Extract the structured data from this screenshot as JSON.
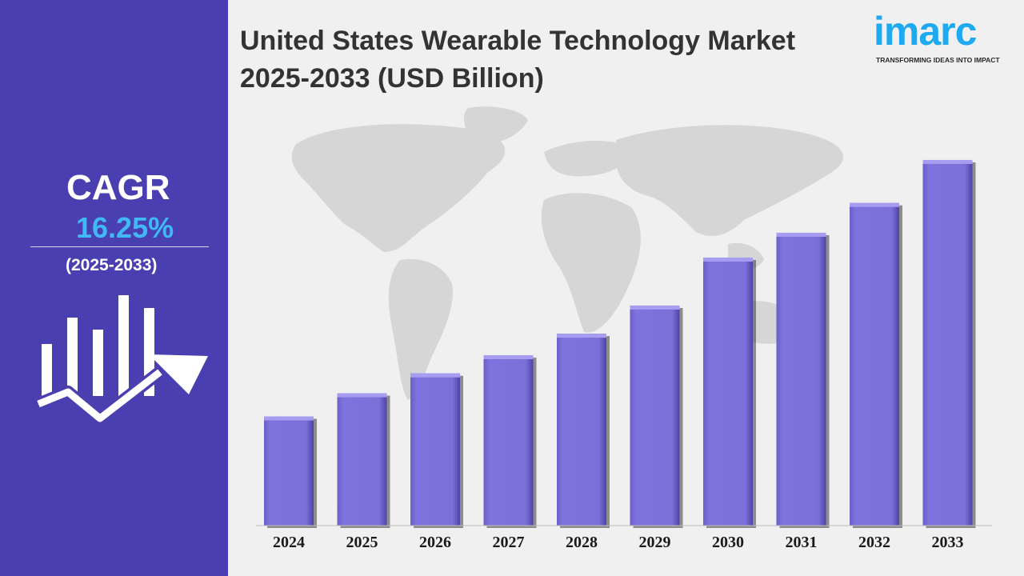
{
  "sidebar": {
    "cagr_label": "CAGR",
    "cagr_value": "16.25%",
    "cagr_period": "(2025-2033)",
    "icon": "bar-chart-growth-arrow-icon"
  },
  "header": {
    "title_line1": "United States Wearable Technology Market",
    "title_line2": "2025-2033 (USD Billion)"
  },
  "logo": {
    "wordmark": "imarc",
    "tagline": "TRANSFORMING IDEAS INTO IMPACT"
  },
  "colors": {
    "sidebar_bg": "#4a3fb0",
    "bar_fill": "#7b6fd8",
    "cagr_value": "#3fb8f4",
    "logo_blue": "#1eaaf1",
    "background": "#f0f0f0"
  },
  "chart_data": {
    "type": "bar",
    "title": "United States Wearable Technology Market 2025-2033 (USD Billion)",
    "xlabel": "",
    "ylabel": "",
    "categories": [
      "2024",
      "2025",
      "2026",
      "2027",
      "2028",
      "2029",
      "2030",
      "2031",
      "2032",
      "2033"
    ],
    "values": [
      13.2,
      16.0,
      18.4,
      20.6,
      23.2,
      26.6,
      32.4,
      35.4,
      39.0,
      44.2
    ],
    "ylim": [
      0,
      50
    ],
    "grid": false,
    "legend": "none",
    "note": "Values are relative estimates; the chart prints no y-axis or data labels."
  }
}
